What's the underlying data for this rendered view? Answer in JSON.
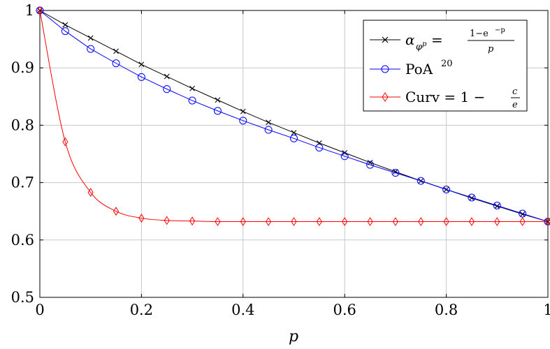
{
  "chart_data": {
    "type": "line",
    "xlabel": "p",
    "ylabel": "",
    "xlim": [
      0,
      1
    ],
    "ylim": [
      0.5,
      1
    ],
    "xticks": [
      "0",
      "0.2",
      "0.4",
      "0.6",
      "0.8",
      "1"
    ],
    "yticks": [
      "0.5",
      "0.6",
      "0.7",
      "0.8",
      "0.9",
      "1"
    ],
    "grid": true,
    "legend_position": "top-right",
    "x": [
      0,
      0.05,
      0.1,
      0.15,
      0.2,
      0.25,
      0.3,
      0.35,
      0.4,
      0.45,
      0.5,
      0.55,
      0.6,
      0.65,
      0.7,
      0.75,
      0.8,
      0.85,
      0.9,
      0.95,
      1
    ],
    "series": [
      {
        "name": "α_{φ^p} = (1−e^{−p})/p",
        "color": "#000000",
        "marker": "x",
        "values": [
          1.0,
          0.975,
          0.952,
          0.929,
          0.906,
          0.885,
          0.864,
          0.844,
          0.824,
          0.805,
          0.787,
          0.769,
          0.752,
          0.735,
          0.719,
          0.703,
          0.688,
          0.673,
          0.659,
          0.645,
          0.632
        ]
      },
      {
        "name": "PoA^20",
        "color": "#0000ff",
        "marker": "circle",
        "values": [
          1.0,
          0.964,
          0.933,
          0.908,
          0.884,
          0.863,
          0.843,
          0.825,
          0.808,
          0.792,
          0.777,
          0.761,
          0.746,
          0.731,
          0.717,
          0.703,
          0.688,
          0.674,
          0.66,
          0.646,
          0.632
        ]
      },
      {
        "name": "Curv = 1 − c/e",
        "color": "#ff0000",
        "marker": "diamond",
        "values": [
          1.0,
          0.771,
          0.683,
          0.65,
          0.638,
          0.634,
          0.633,
          0.632,
          0.632,
          0.632,
          0.632,
          0.632,
          0.632,
          0.632,
          0.632,
          0.632,
          0.632,
          0.632,
          0.632,
          0.632,
          0.632
        ]
      }
    ],
    "legend": {
      "entry1": {
        "alpha": "α",
        "sub": "φ",
        "sup": "p",
        "eq": "=",
        "num": "1−e",
        "num_sup": "−p",
        "den": "p"
      },
      "entry2": {
        "base": "PoA",
        "sup": "20"
      },
      "entry3": {
        "base": "Curv = 1 −",
        "num": "c",
        "den": "e"
      }
    }
  }
}
